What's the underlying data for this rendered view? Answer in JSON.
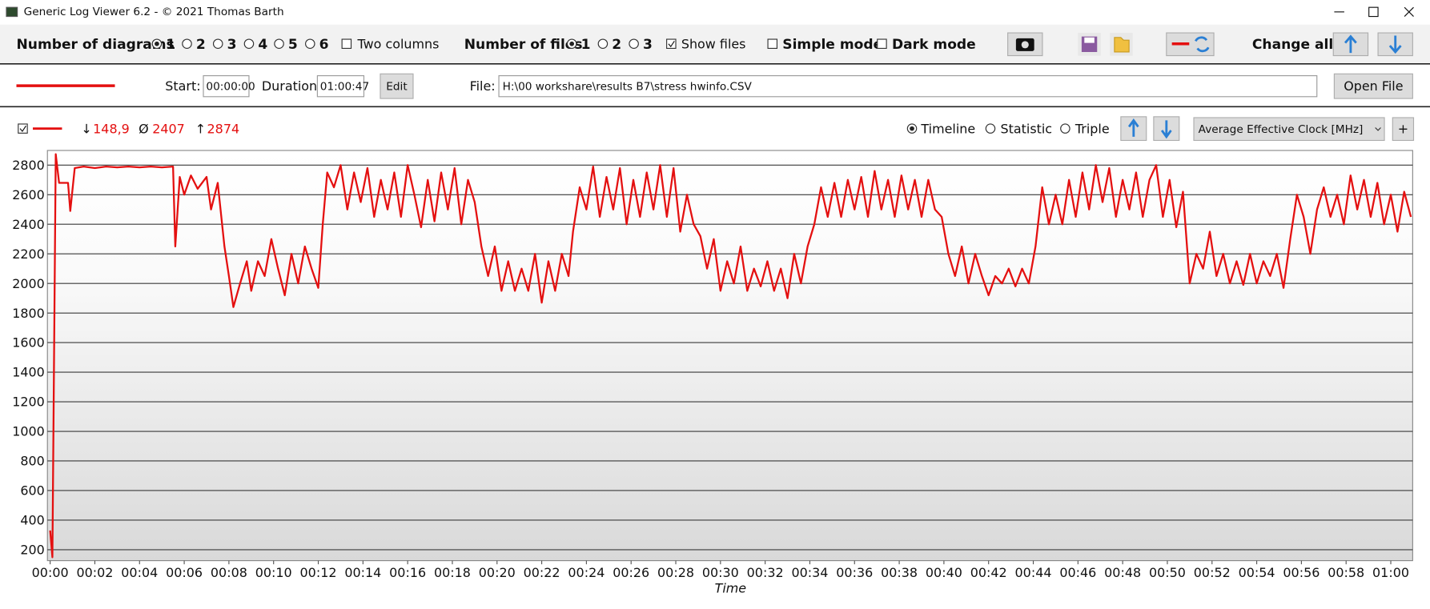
{
  "window": {
    "title": "Generic Log Viewer 6.2 - © 2021 Thomas Barth"
  },
  "toolbar": {
    "diagrams_label": "Number of diagrams",
    "diagram_options": [
      "1",
      "2",
      "3",
      "4",
      "5",
      "6"
    ],
    "two_columns": "Two columns",
    "files_label": "Number of files",
    "file_options": [
      "1",
      "2",
      "3"
    ],
    "show_files": "Show files",
    "simple_mode": "Simple mode",
    "dark_mode": "Dark mode",
    "change_all": "Change all"
  },
  "file_bar": {
    "start_label": "Start:",
    "start": "00:00:00",
    "duration_label": "Duration:",
    "duration": "01:00:47",
    "edit": "Edit",
    "file_label": "File:",
    "file_path": "H:\\00 workshare\\results B7\\stress hwinfo.CSV",
    "open_file": "Open File"
  },
  "diagram_header": {
    "min_symbol": "↓",
    "min": "148,9",
    "avg_symbol": "Ø",
    "avg": "2407",
    "max_symbol": "↑",
    "max": "2874",
    "view_options": [
      "Timeline",
      "Statistic",
      "Triple"
    ],
    "channel": "Average Effective Clock [MHz]",
    "add": "+"
  },
  "chart_data": {
    "type": "line",
    "xlabel": "Time",
    "color": "#e41010",
    "grid": true,
    "xlim": [
      0,
      61
    ],
    "ylim": [
      126,
      2899
    ],
    "xticks": [
      {
        "value": 0,
        "label": "00:00"
      },
      {
        "value": 2,
        "label": "00:02"
      },
      {
        "value": 4,
        "label": "00:04"
      },
      {
        "value": 6,
        "label": "00:06"
      },
      {
        "value": 8,
        "label": "00:08"
      },
      {
        "value": 10,
        "label": "00:10"
      },
      {
        "value": 12,
        "label": "00:12"
      },
      {
        "value": 14,
        "label": "00:14"
      },
      {
        "value": 16,
        "label": "00:16"
      },
      {
        "value": 18,
        "label": "00:18"
      },
      {
        "value": 20,
        "label": "00:20"
      },
      {
        "value": 22,
        "label": "00:22"
      },
      {
        "value": 24,
        "label": "00:24"
      },
      {
        "value": 26,
        "label": "00:26"
      },
      {
        "value": 28,
        "label": "00:28"
      },
      {
        "value": 30,
        "label": "00:30"
      },
      {
        "value": 32,
        "label": "00:32"
      },
      {
        "value": 34,
        "label": "00:34"
      },
      {
        "value": 36,
        "label": "00:36"
      },
      {
        "value": 38,
        "label": "00:38"
      },
      {
        "value": 40,
        "label": "00:40"
      },
      {
        "value": 42,
        "label": "00:42"
      },
      {
        "value": 44,
        "label": "00:44"
      },
      {
        "value": 46,
        "label": "00:46"
      },
      {
        "value": 48,
        "label": "00:48"
      },
      {
        "value": 50,
        "label": "00:50"
      },
      {
        "value": 52,
        "label": "00:52"
      },
      {
        "value": 54,
        "label": "00:54"
      },
      {
        "value": 56,
        "label": "00:56"
      },
      {
        "value": 58,
        "label": "00:58"
      },
      {
        "value": 60,
        "label": "01:00"
      }
    ],
    "yticks": [
      200,
      400,
      600,
      800,
      1000,
      1200,
      1400,
      1600,
      1800,
      2000,
      2200,
      2400,
      2600,
      2800
    ],
    "x": [
      0,
      0.1,
      0.25,
      0.4,
      0.8,
      0.9,
      1.1,
      1.5,
      2,
      2.5,
      3,
      3.5,
      4,
      4.5,
      5,
      5.5,
      5.6,
      5.8,
      6,
      6.3,
      6.6,
      7,
      7.2,
      7.5,
      7.8,
      8,
      8.2,
      8.5,
      8.8,
      9,
      9.3,
      9.6,
      9.9,
      10.2,
      10.5,
      10.8,
      11.1,
      11.4,
      11.7,
      12,
      12.2,
      12.4,
      12.7,
      13,
      13.3,
      13.6,
      13.9,
      14.2,
      14.5,
      14.8,
      15.1,
      15.4,
      15.7,
      16,
      16.3,
      16.6,
      16.9,
      17.2,
      17.5,
      17.8,
      18.1,
      18.4,
      18.7,
      19,
      19.3,
      19.6,
      19.9,
      20.2,
      20.5,
      20.8,
      21.1,
      21.4,
      21.7,
      22,
      22.3,
      22.6,
      22.9,
      23.2,
      23.4,
      23.7,
      24,
      24.3,
      24.6,
      24.9,
      25.2,
      25.5,
      25.8,
      26.1,
      26.4,
      26.7,
      27,
      27.3,
      27.6,
      27.9,
      28.2,
      28.5,
      28.8,
      29.1,
      29.4,
      29.7,
      30,
      30.3,
      30.6,
      30.9,
      31.2,
      31.5,
      31.8,
      32.1,
      32.4,
      32.7,
      33,
      33.3,
      33.6,
      33.9,
      34.2,
      34.5,
      34.8,
      35.1,
      35.4,
      35.7,
      36,
      36.3,
      36.6,
      36.9,
      37.2,
      37.5,
      37.8,
      38.1,
      38.4,
      38.7,
      39,
      39.3,
      39.6,
      39.9,
      40.2,
      40.5,
      40.8,
      41.1,
      41.4,
      41.7,
      42,
      42.3,
      42.6,
      42.9,
      43.2,
      43.5,
      43.8,
      44.1,
      44.4,
      44.7,
      45,
      45.3,
      45.6,
      45.9,
      46.2,
      46.5,
      46.8,
      47.1,
      47.4,
      47.7,
      48,
      48.3,
      48.6,
      48.9,
      49.2,
      49.5,
      49.8,
      50.1,
      50.4,
      50.7,
      51,
      51.3,
      51.6,
      51.9,
      52.2,
      52.5,
      52.8,
      53.1,
      53.4,
      53.7,
      54,
      54.3,
      54.6,
      54.9,
      55.2,
      55.5,
      55.8,
      56.1,
      56.4,
      56.7,
      57,
      57.3,
      57.6,
      57.9,
      58.2,
      58.5,
      58.8,
      59.1,
      59.4,
      59.7,
      60,
      60.3,
      60.6,
      60.9
    ],
    "values": [
      330,
      148.9,
      2874,
      2680,
      2680,
      2490,
      2780,
      2790,
      2780,
      2790,
      2785,
      2790,
      2785,
      2790,
      2785,
      2790,
      2250,
      2720,
      2600,
      2730,
      2640,
      2720,
      2500,
      2680,
      2250,
      2050,
      1840,
      2000,
      2150,
      1950,
      2150,
      2050,
      2300,
      2100,
      1920,
      2200,
      2000,
      2250,
      2100,
      1970,
      2400,
      2750,
      2650,
      2800,
      2500,
      2750,
      2550,
      2780,
      2450,
      2700,
      2500,
      2750,
      2450,
      2800,
      2600,
      2380,
      2700,
      2420,
      2750,
      2500,
      2780,
      2400,
      2700,
      2550,
      2250,
      2050,
      2250,
      1950,
      2150,
      1950,
      2100,
      1950,
      2200,
      1870,
      2150,
      1950,
      2200,
      2050,
      2350,
      2650,
      2500,
      2790,
      2450,
      2720,
      2500,
      2780,
      2400,
      2700,
      2450,
      2750,
      2500,
      2800,
      2450,
      2780,
      2350,
      2600,
      2400,
      2320,
      2100,
      2300,
      1950,
      2150,
      2000,
      2250,
      1950,
      2100,
      1980,
      2150,
      1950,
      2100,
      1900,
      2200,
      2000,
      2250,
      2400,
      2650,
      2450,
      2680,
      2450,
      2700,
      2500,
      2720,
      2450,
      2760,
      2500,
      2700,
      2450,
      2730,
      2500,
      2700,
      2450,
      2700,
      2500,
      2450,
      2200,
      2050,
      2250,
      2000,
      2200,
      2050,
      1920,
      2050,
      2000,
      2100,
      1980,
      2100,
      2000,
      2250,
      2650,
      2400,
      2600,
      2400,
      2700,
      2450,
      2750,
      2500,
      2800,
      2550,
      2780,
      2450,
      2700,
      2500,
      2750,
      2450,
      2700,
      2800,
      2450,
      2700,
      2380,
      2620,
      2000,
      2200,
      2100,
      2350,
      2050,
      2200,
      2000,
      2150,
      1990,
      2200,
      2000,
      2150,
      2050,
      2200,
      1970,
      2300,
      2600,
      2450,
      2200,
      2500,
      2650,
      2450,
      2600,
      2400,
      2730,
      2500,
      2700,
      2450,
      2680,
      2400,
      2600,
      2350,
      2620,
      2450
    ]
  }
}
